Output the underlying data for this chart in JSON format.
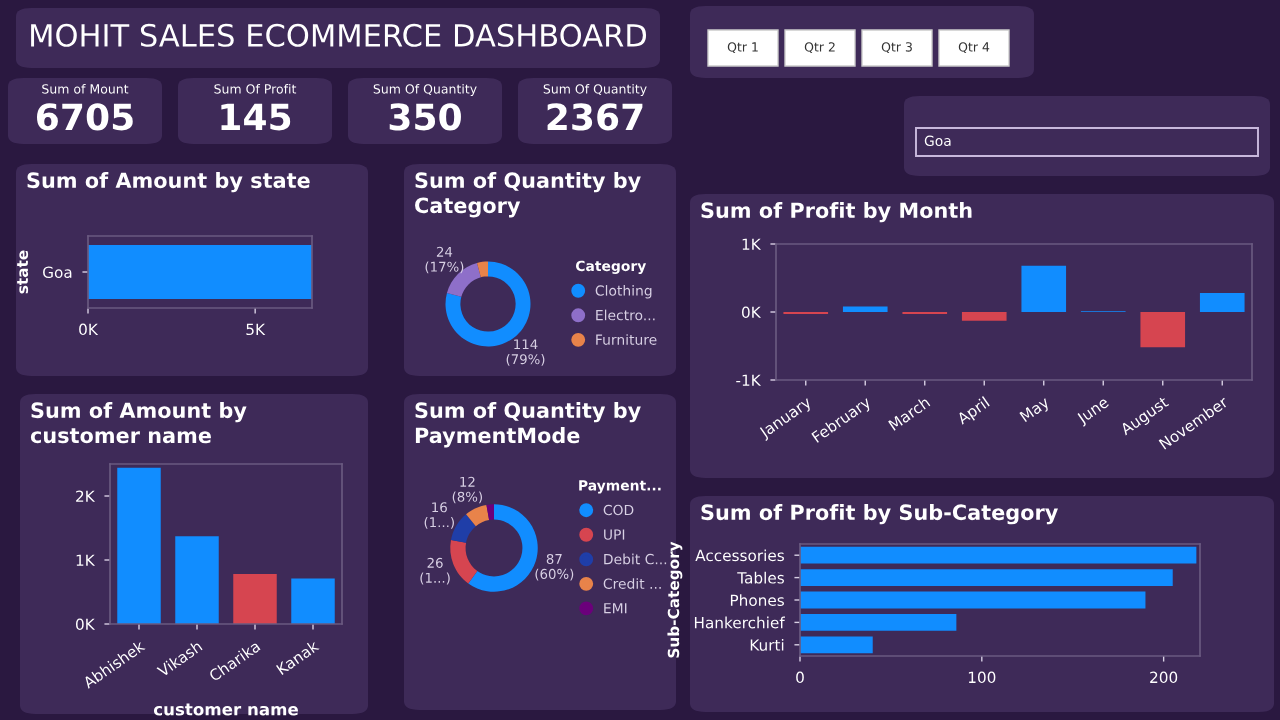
{
  "chart_data": [
    {
      "type": "other",
      "title": "MOHIT SALES ECOMMERCE DASHBOARD",
      "categories": [
        "Sum of Mount",
        "Sum Of Profit",
        "Sum Of Quantity",
        "Sum Of Quantity"
      ],
      "values": [
        6705,
        145,
        350,
        2367
      ],
      "value_labels": [
        "6705",
        "145",
        "350",
        "2367"
      ]
    },
    {
      "type": "other",
      "annotations": [
        "Qtr 1",
        "Qtr 2",
        "Qtr 3",
        "Qtr 4",
        "Goa"
      ]
    },
    {
      "type": "bar",
      "orientation": "horizontal",
      "title": "Sum of Amount by state",
      "ylabel": "state",
      "categories": [
        "Goa"
      ],
      "values": [
        6700
      ],
      "color": "#118dff",
      "xlim": [
        0,
        6700
      ],
      "xticks": [
        {
          "value": 0,
          "label": "0K"
        },
        {
          "value": 5000,
          "label": "5K"
        }
      ]
    },
    {
      "type": "donut",
      "title": "Sum of Quantity by Category",
      "legend_title": "Category",
      "legend": "right",
      "categories": [
        "Clothing",
        "Electro...",
        "Furniture"
      ],
      "values": [
        114,
        24,
        6
      ],
      "colors": [
        "#118dff",
        "#8e6fc9",
        "#e8834a"
      ],
      "value_labels": [
        "114\n(79%)",
        "24\n(17%)",
        null
      ]
    },
    {
      "type": "bar",
      "title": "Sum of Profit by Month",
      "categories": [
        "January",
        "February",
        "March",
        "April",
        "May",
        "June",
        "August",
        "November"
      ],
      "values": [
        -30,
        80,
        -30,
        -130,
        680,
        10,
        -520,
        280
      ],
      "colors": [
        "#d64550",
        "#118dff",
        "#d64550",
        "#d64550",
        "#118dff",
        "#118dff",
        "#d64550",
        "#118dff"
      ],
      "ylim": [
        -1000,
        1000
      ],
      "yticks": [
        {
          "value": -1000,
          "label": "-1K"
        },
        {
          "value": 0,
          "label": "0K"
        },
        {
          "value": 1000,
          "label": "1K"
        }
      ]
    },
    {
      "type": "bar",
      "title": "Sum of Amount by customer name",
      "xlabel": "customer name",
      "categories": [
        "Abhishek",
        "Vikash",
        "Charika",
        "Kanak"
      ],
      "values": [
        2440,
        1370,
        780,
        710
      ],
      "colors": [
        "#118dff",
        "#118dff",
        "#d64550",
        "#118dff"
      ],
      "ylim": [
        0,
        2500
      ],
      "yticks": [
        {
          "value": 0,
          "label": "0K"
        },
        {
          "value": 1000,
          "label": "1K"
        },
        {
          "value": 2000,
          "label": "2K"
        }
      ]
    },
    {
      "type": "donut",
      "title": "Sum of Quantity by PaymentMode",
      "legend_title": "Payment...",
      "legend": "right",
      "categories": [
        "COD",
        "UPI",
        "Debit C...",
        "Credit ...",
        "EMI"
      ],
      "values": [
        87,
        26,
        16,
        12,
        4
      ],
      "colors": [
        "#118dff",
        "#d64550",
        "#1f3ea8",
        "#e8834a",
        "#6b007b"
      ],
      "value_labels": [
        "87\n(60%)",
        "26\n(1...)",
        "16\n(1...)",
        "12\n(8%)",
        null
      ]
    },
    {
      "type": "bar",
      "orientation": "horizontal",
      "title": "Sum of Profit by Sub-Category",
      "ylabel": "Sub-Category",
      "categories": [
        "Accessories",
        "Tables",
        "Phones",
        "Hankerchief",
        "Kurti"
      ],
      "values": [
        218,
        205,
        190,
        86,
        40
      ],
      "color": "#118dff",
      "xlim": [
        0,
        220
      ],
      "xticks": [
        0,
        100,
        200
      ]
    }
  ]
}
